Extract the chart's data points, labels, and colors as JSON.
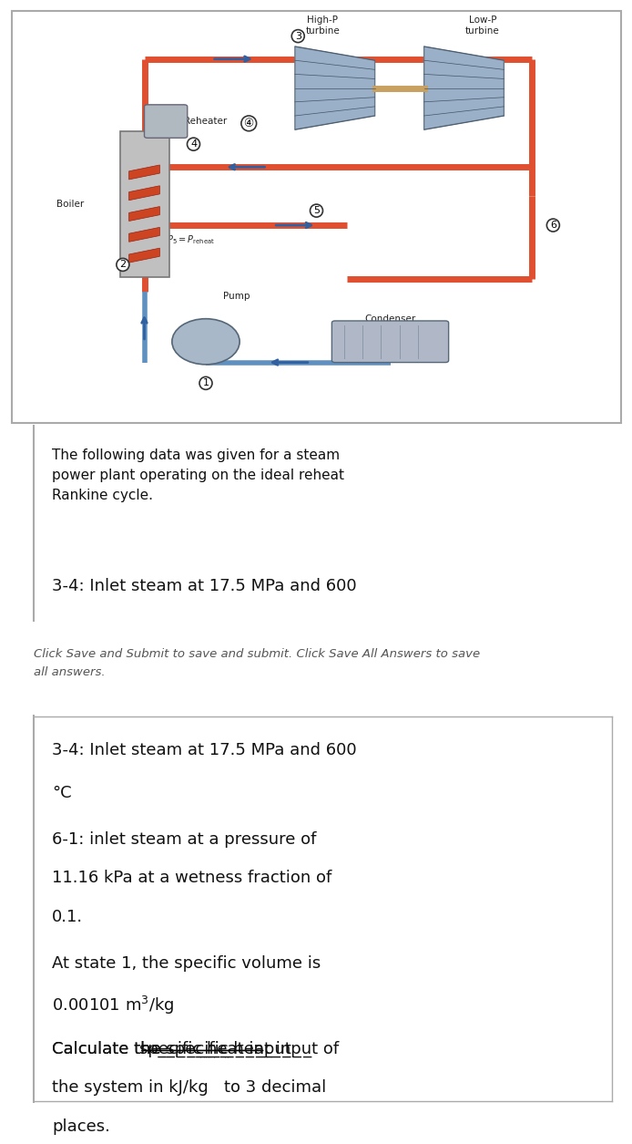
{
  "bg_color_top": "#ffffff",
  "bg_color_banner": "#d9d9d9",
  "bg_color_bottom": "#ffffff",
  "border_color": "#cccccc",
  "diagram_bg": "#ffffff",
  "pipe_hot_color": "#e05030",
  "pipe_cold_color": "#6090c0",
  "arrow_color": "#3060a0",
  "text_color": "#222222",
  "label_color": "#555555",
  "banner_text_color": "#555555",
  "title_text": "The following data was given for a steam\npower plant operating on the ideal reheat\nRankine cycle.",
  "truncated_text": "3-4: Inlet steam at 17.5 MPa and 600",
  "banner_text": "Click Save and Submit to save and submit. Click Save All Answers to save\nall answers.",
  "bottom_line1": "3-4: Inlet steam at 17.5 MPa and 600",
  "bottom_line2": "°C",
  "bottom_line3": "6-1: inlet steam at a pressure of\n11.16 kPa at a wetness fraction of\n0.1.",
  "bottom_line4": "At state 1, the specific volume is\n0.00101 m³/kg",
  "bottom_line5": "Calculate the specific heat input of\nthe system in kJ/kg   to 3 decimal\nplaces.",
  "node_labels": [
    "1",
    "2",
    "3",
    "4",
    "5",
    "6"
  ],
  "component_labels": [
    "High-P\nturbine",
    "Low-P\nturbine",
    "Reheater",
    "Boiler",
    "Pump",
    "Condenser"
  ],
  "pressure_label": "P₄ = P₅ = P₁ⱼreheat"
}
